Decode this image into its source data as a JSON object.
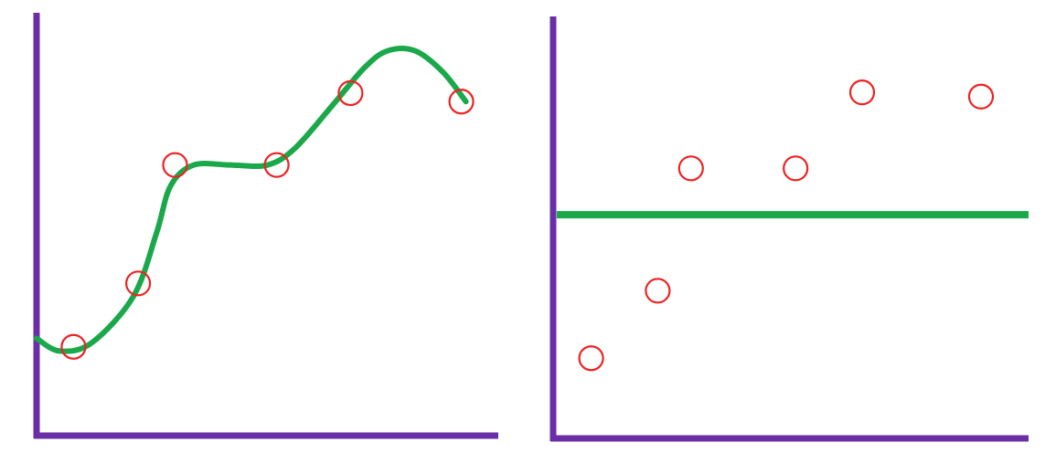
{
  "colors": {
    "axis": "#6a2fa6",
    "fit_line": "#1aa84a",
    "points": "#ee2222",
    "background": "#ffffff"
  },
  "chart_data": [
    {
      "type": "scatter",
      "panel": "left",
      "title": "",
      "xlabel": "",
      "ylabel": "",
      "grid": false,
      "xlim": [
        0,
        10
      ],
      "ylim": [
        0,
        10
      ],
      "points": [
        {
          "x": 0.8,
          "y": 2.1
        },
        {
          "x": 2.2,
          "y": 3.6
        },
        {
          "x": 3.0,
          "y": 6.4
        },
        {
          "x": 5.2,
          "y": 6.4
        },
        {
          "x": 6.8,
          "y": 8.1
        },
        {
          "x": 9.2,
          "y": 7.9
        }
      ],
      "fit": {
        "kind": "curve",
        "points": [
          {
            "x": 0.0,
            "y": 2.3
          },
          {
            "x": 0.5,
            "y": 2.0
          },
          {
            "x": 1.2,
            "y": 2.2
          },
          {
            "x": 2.1,
            "y": 3.3
          },
          {
            "x": 2.6,
            "y": 4.8
          },
          {
            "x": 2.9,
            "y": 5.9
          },
          {
            "x": 3.4,
            "y": 6.4
          },
          {
            "x": 4.2,
            "y": 6.4
          },
          {
            "x": 5.0,
            "y": 6.4
          },
          {
            "x": 5.6,
            "y": 6.8
          },
          {
            "x": 6.4,
            "y": 7.8
          },
          {
            "x": 7.1,
            "y": 8.7
          },
          {
            "x": 7.6,
            "y": 9.1
          },
          {
            "x": 8.2,
            "y": 9.1
          },
          {
            "x": 8.8,
            "y": 8.6
          },
          {
            "x": 9.3,
            "y": 7.9
          }
        ]
      }
    },
    {
      "type": "scatter",
      "panel": "right",
      "title": "",
      "xlabel": "",
      "ylabel": "",
      "grid": false,
      "xlim": [
        0,
        10
      ],
      "ylim": [
        0,
        10
      ],
      "points": [
        {
          "x": 0.8,
          "y": 1.9
        },
        {
          "x": 2.2,
          "y": 3.5
        },
        {
          "x": 2.9,
          "y": 6.4
        },
        {
          "x": 5.1,
          "y": 6.4
        },
        {
          "x": 6.5,
          "y": 8.2
        },
        {
          "x": 9.0,
          "y": 8.1
        }
      ],
      "fit": {
        "kind": "horizontal",
        "y": 5.3
      }
    }
  ]
}
